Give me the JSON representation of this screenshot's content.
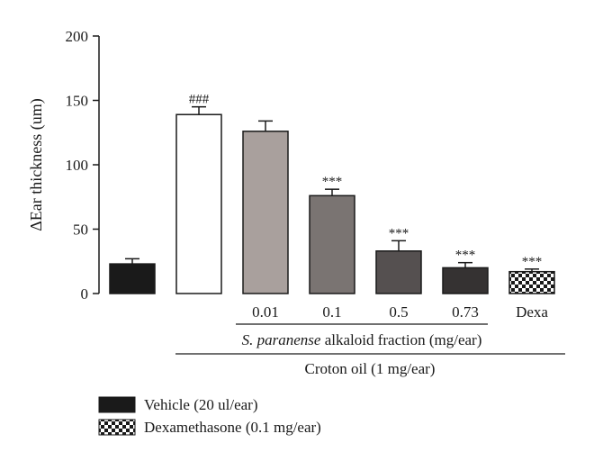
{
  "chart_data": {
    "type": "bar",
    "ylabel": "ΔEar thickness (um)",
    "ylim": [
      0,
      200
    ],
    "yticks": [
      0,
      50,
      100,
      150,
      200
    ],
    "grid": false,
    "bars": [
      {
        "value": 23,
        "error": 4,
        "label": "",
        "annotation": "",
        "fill": "#1a1a1a",
        "pattern": "solid"
      },
      {
        "value": 139,
        "error": 6,
        "label": "",
        "annotation": "###",
        "fill": "#ffffff",
        "pattern": "solid"
      },
      {
        "value": 126,
        "error": 8,
        "label": "0.01",
        "annotation": "",
        "fill": "#a9a09d",
        "pattern": "solid"
      },
      {
        "value": 76,
        "error": 5,
        "label": "0.1",
        "annotation": "***",
        "fill": "#7a7472",
        "pattern": "solid"
      },
      {
        "value": 33,
        "error": 8,
        "label": "0.5",
        "annotation": "***",
        "fill": "#555050",
        "pattern": "solid"
      },
      {
        "value": 20,
        "error": 4,
        "label": "0.73",
        "annotation": "***",
        "fill": "#353232",
        "pattern": "solid"
      },
      {
        "value": 17,
        "error": 2,
        "label": "Dexa",
        "annotation": "***",
        "fill": "#1a1a1a",
        "pattern": "checker"
      }
    ],
    "group_label_italic": "S. paranense",
    "group_label_rest": " alkaloid fraction (mg/ear)",
    "outer_group_label": "Croton oil (1 mg/ear)",
    "legend": [
      {
        "label": "Vehicle (20 ul/ear)",
        "pattern": "solid",
        "color": "#1a1a1a"
      },
      {
        "label": "Dexamethasone (0.1 mg/ear)",
        "pattern": "checker",
        "color": "#1a1a1a"
      }
    ]
  }
}
